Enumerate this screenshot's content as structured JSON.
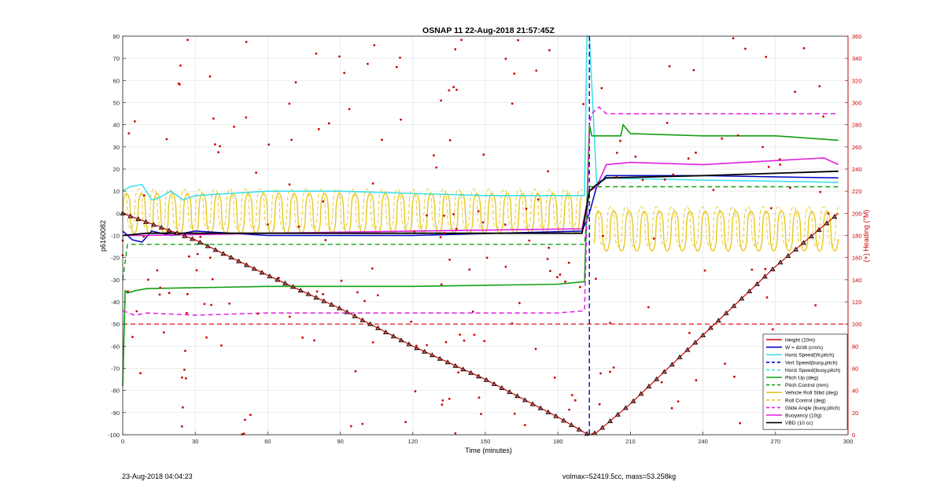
{
  "chart_data": {
    "type": "line",
    "title": "OSNAP 11 22-Aug-2018 21:57:45Z",
    "xlabel": "Time (minutes)",
    "ylabel_left": "p6160082",
    "ylabel_right": "(+) Heading (°M)",
    "xlim": [
      0,
      300
    ],
    "ylim_left": [
      -100,
      80
    ],
    "ylim_right": [
      0,
      360
    ],
    "xticks": [
      0,
      30,
      60,
      90,
      120,
      150,
      180,
      210,
      240,
      270,
      300
    ],
    "yticks_left": [
      -100,
      -90,
      -80,
      -70,
      -60,
      -50,
      -40,
      -30,
      -20,
      -10,
      0,
      10,
      20,
      30,
      40,
      50,
      60,
      70,
      80
    ],
    "yticks_right": [
      0,
      20,
      40,
      60,
      80,
      100,
      120,
      140,
      160,
      180,
      200,
      220,
      240,
      260,
      280,
      300,
      320,
      340,
      360
    ],
    "grid": true,
    "legend_position": "bottom-right",
    "legend": [
      {
        "name": "Height (10m)",
        "color": "#d00000",
        "style": "solid"
      },
      {
        "name": "W = dz/dt (cm/s)",
        "color": "#0000c0",
        "style": "solid"
      },
      {
        "name": "Horiz Speed(W,pitch)",
        "color": "#40e0e8",
        "style": "solid"
      },
      {
        "name": "Vert Speed(buoy,pitch)",
        "color": "#0000c0",
        "style": "dashed"
      },
      {
        "name": "Horiz Speed(buoy,pitch)",
        "color": "#40e0e8",
        "style": "dashed"
      },
      {
        "name": "Pitch Up (deg)",
        "color": "#10a010",
        "style": "solid"
      },
      {
        "name": "Pitch Control (mm)",
        "color": "#10a010",
        "style": "dashed"
      },
      {
        "name": "Vehicle Roll Stbd (deg)",
        "color": "#e8c820",
        "style": "solid"
      },
      {
        "name": "Roll Control (deg)",
        "color": "#e8c820",
        "style": "dashed"
      },
      {
        "name": "Glide Angle (buoy,pitch)",
        "color": "#e020e0",
        "style": "dashed"
      },
      {
        "name": "Buoyancy (10g)",
        "color": "#e020e0",
        "style": "solid"
      },
      {
        "name": "VBD (10 cc)",
        "color": "#000000",
        "style": "solid"
      }
    ],
    "series": [
      {
        "key": "depth",
        "x": [
          0,
          30,
          60,
          90,
          120,
          150,
          180,
          191,
          193,
          196,
          210,
          240,
          270,
          296
        ],
        "values": [
          0,
          -12,
          -28,
          -43,
          -60,
          -75,
          -92,
          -99,
          -100,
          -99,
          -86,
          -55,
          -24,
          0
        ]
      },
      {
        "key": "w",
        "x": [
          0,
          4,
          8,
          12,
          20,
          30,
          60,
          120,
          190,
          193,
          196,
          200,
          240,
          296
        ],
        "values": [
          -8,
          -12,
          -13,
          -8,
          -10,
          -8,
          -10,
          -10,
          -8,
          0,
          12,
          17,
          17,
          16
        ]
      },
      {
        "key": "horiz_speed",
        "x": [
          0,
          3,
          8,
          12,
          15,
          20,
          25,
          30,
          60,
          90,
          120,
          150,
          180,
          191,
          192,
          193,
          196,
          200,
          240,
          296
        ],
        "values": [
          10,
          12,
          13,
          6,
          7,
          10,
          6,
          8,
          10,
          10,
          9,
          8,
          8,
          8,
          80,
          80,
          14,
          16,
          15,
          14
        ]
      },
      {
        "key": "vert_speed_buoy",
        "x": [
          193,
          193,
          193,
          194
        ],
        "values": [
          80,
          -20,
          -100,
          -100
        ]
      },
      {
        "key": "pitch_up",
        "x": [
          0,
          1,
          2,
          5,
          10,
          60,
          120,
          180,
          190,
          191,
          193,
          194,
          200,
          206,
          207,
          210,
          240,
          270,
          296
        ],
        "values": [
          -78,
          -35,
          -36,
          -35,
          -34,
          -33,
          -33,
          -32,
          -31,
          -31,
          40,
          35,
          35,
          35,
          40,
          36,
          35,
          35,
          33
        ]
      },
      {
        "key": "pitch_control",
        "x": [
          0,
          2,
          190,
          191,
          193,
          194,
          296
        ],
        "values": [
          -30,
          -14,
          -14,
          -14,
          12,
          12,
          12
        ]
      },
      {
        "key": "glide_angle",
        "x": [
          0,
          5,
          10,
          30,
          60,
          90,
          120,
          150,
          180,
          191,
          193,
          194,
          197,
          200,
          240,
          296
        ],
        "values": [
          -44,
          -46,
          -45,
          -46,
          -45,
          -45,
          -45,
          -45,
          -45,
          -44,
          40,
          45,
          48,
          45,
          45,
          45
        ]
      },
      {
        "key": "buoyancy",
        "x": [
          0,
          10,
          60,
          120,
          190,
          193,
          196,
          200,
          210,
          240,
          290,
          296
        ],
        "values": [
          -10,
          -10,
          -9,
          -8,
          -7,
          10,
          12,
          22,
          23,
          22,
          25,
          22
        ]
      },
      {
        "key": "vbd",
        "x": [
          0,
          10,
          60,
          120,
          190,
          193,
          196,
          200,
          240,
          296
        ],
        "values": [
          -10,
          -9,
          -9,
          -9,
          -9,
          10,
          13,
          16,
          17,
          19
        ]
      },
      {
        "key": "roll",
        "x_start": 0,
        "x_end": 190,
        "x2_start": 195,
        "x2_end": 296,
        "center_left": 0,
        "center_right": -8,
        "amplitude": 9,
        "period_min": 6.3
      }
    ],
    "heading_x_range": [
      0,
      300
    ],
    "heading_reference": {
      "value_deg": 100,
      "style": "dashed",
      "color": "#e00000"
    }
  },
  "footer": {
    "timestamp": "23-Aug-2018 04:04:23",
    "summary": "volmax=52419.5cc, mass=53.258kg"
  }
}
